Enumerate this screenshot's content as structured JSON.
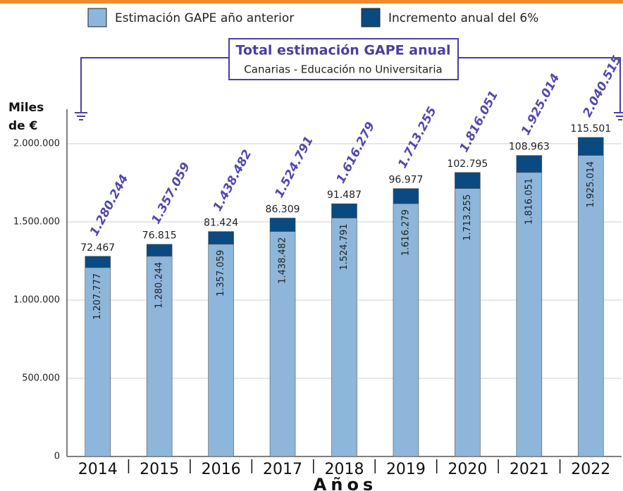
{
  "chart_data": {
    "type": "stacked_bar",
    "title": "Total estimación GAPE anual",
    "subtitle": "Canarias - Educación no Universitaria",
    "y_label": "Miles de €",
    "x_label": "Años",
    "categories": [
      "2014",
      "2015",
      "2016",
      "2017",
      "2018",
      "2019",
      "2020",
      "2021",
      "2022"
    ],
    "series": [
      {
        "name": "Estimación GAPE año anterior",
        "color": "#8db6da",
        "values": [
          1207777,
          1280244,
          1357059,
          1438482,
          1524791,
          1616279,
          1713255,
          1816051,
          1925014
        ],
        "value_labels": [
          "1.207.777",
          "1.280.244",
          "1.357.059",
          "1.438.482",
          "1.524.791",
          "1.616.279",
          "1.713.255",
          "1.816.051",
          "1.925.014"
        ]
      },
      {
        "name": "Incremento anual del 6%",
        "color": "#0b4a80",
        "values": [
          72467,
          76815,
          81424,
          86309,
          91487,
          96977,
          102795,
          108963,
          115501
        ],
        "value_labels": [
          "72.467",
          "76.815",
          "81.424",
          "86.309",
          "91.487",
          "96.977",
          "102.795",
          "108.963",
          "115.501"
        ]
      }
    ],
    "total_labels": [
      "1.280.244",
      "1.357.059",
      "1.438.482",
      "1.524.791",
      "1.616.279",
      "1.713.255",
      "1.816.051",
      "1.925.014",
      "2.040.515"
    ],
    "ylim": [
      0,
      2000000
    ],
    "yticks": [
      0,
      {
        "value": 500000,
        "label": "500.000"
      },
      {
        "value": 1000000,
        "label": "1.000.000"
      },
      {
        "value": 1500000,
        "label": "1.500.000"
      },
      {
        "value": 2000000,
        "label": "2.000.000"
      }
    ],
    "grid": true
  }
}
